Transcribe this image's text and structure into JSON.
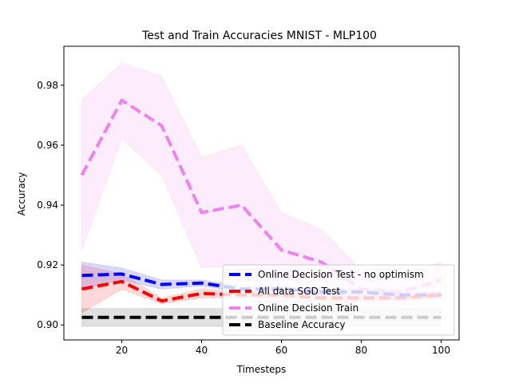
{
  "chart_data": {
    "type": "line",
    "title": "Test and Train Accuracies MNIST - MLP100",
    "xlabel": "Timesteps",
    "ylabel": "Accuracy",
    "xlim": [
      5.5,
      104.5
    ],
    "ylim": [
      0.895,
      0.993
    ],
    "xticks": [
      20,
      40,
      60,
      80,
      100
    ],
    "xtick_labels": [
      "20",
      "40",
      "60",
      "80",
      "100"
    ],
    "yticks": [
      0.9,
      0.92,
      0.94,
      0.96,
      0.98
    ],
    "ytick_labels": [
      "0.90",
      "0.92",
      "0.94",
      "0.96",
      "0.98"
    ],
    "grid": false,
    "legend_position": "lower-right",
    "x": [
      10,
      20,
      30,
      40,
      50,
      60,
      70,
      80,
      90,
      100
    ],
    "series": [
      {
        "name": "Online Decision Test - no optimism",
        "color": "#0000ff",
        "style": "dashed",
        "values": [
          0.9165,
          0.917,
          0.9135,
          0.914,
          0.912,
          0.912,
          0.911,
          0.911,
          0.91,
          0.91
        ],
        "band_lower": [
          0.912,
          0.915,
          0.912,
          0.913,
          0.911,
          0.911,
          0.91,
          0.91,
          0.909,
          0.909
        ],
        "band_upper": [
          0.921,
          0.919,
          0.915,
          0.915,
          0.913,
          0.913,
          0.912,
          0.912,
          0.911,
          0.911
        ]
      },
      {
        "name": "All data SGD Test",
        "color": "#ff0000",
        "style": "dashed",
        "values": [
          0.912,
          0.9145,
          0.908,
          0.9105,
          0.91,
          0.91,
          0.909,
          0.909,
          0.909,
          0.91
        ],
        "band_lower": [
          0.904,
          0.912,
          0.907,
          0.909,
          0.909,
          0.909,
          0.908,
          0.908,
          0.908,
          0.909
        ],
        "band_upper": [
          0.92,
          0.917,
          0.909,
          0.912,
          0.911,
          0.911,
          0.91,
          0.91,
          0.91,
          0.911
        ]
      },
      {
        "name": "Online Decision Train",
        "color": "#ee82ee",
        "style": "dashed",
        "values": [
          0.95,
          0.975,
          0.9665,
          0.9375,
          0.94,
          0.925,
          0.921,
          0.912,
          0.911,
          0.915
        ],
        "band_lower": [
          0.925,
          0.962,
          0.95,
          0.919,
          0.92,
          0.913,
          0.91,
          0.906,
          0.906,
          0.909
        ],
        "band_upper": [
          0.975,
          0.9875,
          0.983,
          0.956,
          0.96,
          0.9375,
          0.932,
          0.918,
          0.916,
          0.921
        ]
      },
      {
        "name": "Baseline Accuracy",
        "color": "#000000",
        "style": "dashed",
        "values": [
          0.9025,
          0.9025,
          0.9025,
          0.9025,
          0.9025,
          0.9025,
          0.9025,
          0.9025,
          0.9025,
          0.9025
        ],
        "band_lower": [
          0.8995,
          0.8995,
          0.8995,
          0.8995,
          0.8995,
          0.8995,
          0.8995,
          0.8995,
          0.8995,
          0.8995
        ],
        "band_upper": [
          0.9055,
          0.9055,
          0.9055,
          0.9055,
          0.9055,
          0.9055,
          0.9055,
          0.9055,
          0.9055,
          0.9055
        ]
      }
    ]
  }
}
